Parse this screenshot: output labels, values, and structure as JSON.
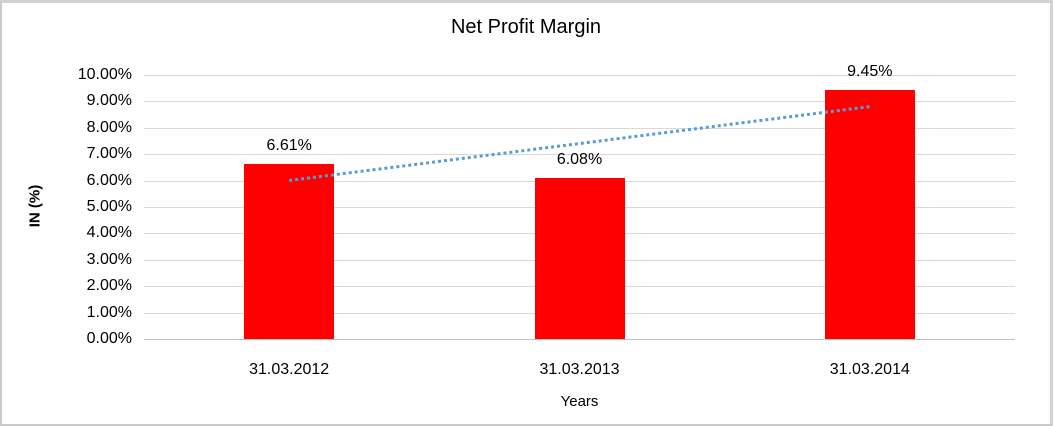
{
  "chart_data": {
    "type": "bar",
    "title": "Net Profit Margin",
    "categories": [
      "31.03.2012",
      "31.03.2013",
      "31.03.2014"
    ],
    "series": [
      {
        "name": "Net Profit Margin",
        "values": [
          6.61,
          6.08,
          9.45
        ]
      }
    ],
    "data_labels": [
      "6.61%",
      "6.08%",
      "9.45%"
    ],
    "xlabel": "Years",
    "ylabel": "IN (%)",
    "ylim": [
      0,
      10
    ],
    "y_ticks_top_to_bottom": [
      "10.00%",
      "9.00%",
      "8.00%",
      "7.00%",
      "6.00%",
      "5.00%",
      "4.00%",
      "3.00%",
      "2.00%",
      "1.00%",
      "0.00%"
    ],
    "grid": true,
    "legend": "none",
    "colors": {
      "bar": "#FF0000",
      "gridline": "#D9D9D9",
      "axis_line": "#BFBFBF",
      "trendline": "#5B9BD5",
      "text": "#000000"
    },
    "trendline": {
      "type": "linear",
      "style": "dotted",
      "start_value": 6.0,
      "end_value": 8.8
    }
  }
}
